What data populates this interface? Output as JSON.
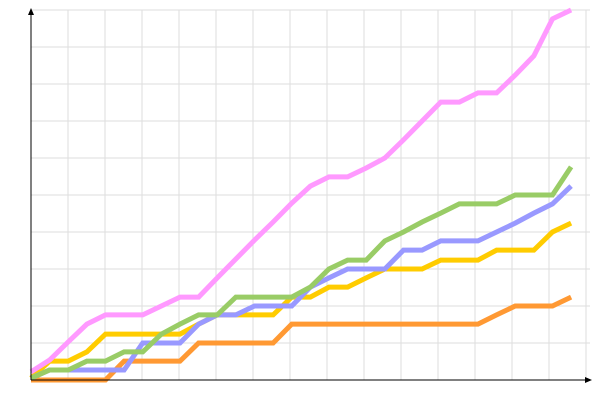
{
  "chart_data": {
    "type": "line",
    "title": "",
    "xlabel": "",
    "ylabel": "",
    "grid": true,
    "legend": "none",
    "xlim": [
      0,
      29.8
    ],
    "ylim": [
      0,
      100
    ],
    "x": [
      0,
      1,
      2,
      3,
      4,
      5,
      6,
      7,
      8,
      9,
      10,
      11,
      12,
      13,
      14,
      15,
      16,
      17,
      18,
      19,
      20,
      21,
      22,
      23,
      24,
      25,
      26,
      27,
      28,
      29
    ],
    "series": [
      {
        "color": "#ff9933",
        "values": [
          0,
          0,
          0,
          0,
          0,
          5.1,
          5.1,
          5.1,
          5.1,
          10,
          10,
          10,
          10,
          10,
          15.1,
          15.1,
          15.1,
          15.1,
          15.1,
          15.1,
          15.1,
          15.1,
          15.1,
          15.1,
          15.1,
          17.6,
          20,
          20,
          20,
          22.4
        ]
      },
      {
        "color": "#ffcc00",
        "values": [
          0.5,
          5.1,
          5.1,
          7.6,
          12.4,
          12.4,
          12.4,
          12.4,
          12.4,
          15.1,
          17.6,
          17.6,
          17.6,
          17.6,
          22.4,
          22.4,
          25.1,
          25.1,
          27.6,
          30,
          30,
          30,
          32.4,
          32.4,
          32.4,
          35.1,
          35.1,
          35.1,
          40,
          42.4
        ]
      },
      {
        "color": "#9999ff",
        "values": [
          0.5,
          2.7,
          2.7,
          2.7,
          2.7,
          2.7,
          10,
          10,
          10,
          15.1,
          17.6,
          17.6,
          20,
          20,
          20,
          25.1,
          27.6,
          30,
          30,
          30,
          35.1,
          35.1,
          37.6,
          37.6,
          37.6,
          40,
          42.4,
          45.1,
          47.6,
          52.4
        ]
      },
      {
        "color": "#99cc66",
        "values": [
          0.5,
          2.7,
          2.7,
          5.1,
          5.1,
          7.6,
          7.6,
          12.4,
          15.1,
          17.6,
          17.6,
          22.4,
          22.4,
          22.4,
          22.4,
          25.1,
          30,
          32.4,
          32.4,
          37.6,
          40,
          42.7,
          45.1,
          47.6,
          47.6,
          47.6,
          50,
          50,
          50,
          57.6
        ]
      },
      {
        "color": "#ff99ff",
        "values": [
          2.2,
          5.4,
          10.3,
          15.1,
          17.6,
          17.6,
          17.6,
          20,
          22.4,
          22.4,
          27.6,
          32.7,
          37.8,
          42.7,
          47.8,
          52.4,
          54.9,
          54.9,
          57.3,
          60,
          64.9,
          70,
          75.1,
          75.1,
          77.6,
          77.6,
          82.4,
          87.6,
          97.6,
          100
        ]
      }
    ]
  }
}
